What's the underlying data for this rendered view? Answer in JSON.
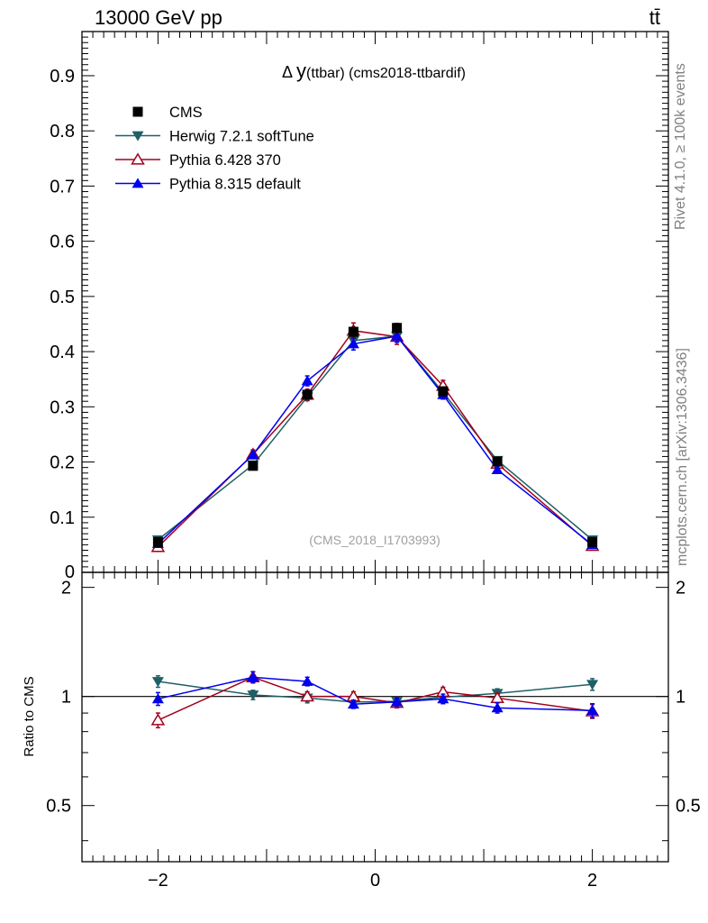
{
  "header": {
    "left": "13000 GeV pp",
    "right": "tt̄"
  },
  "side_labels": {
    "rivet": "Rivet 4.1.0, ≥ 100k events",
    "mcplots": "mcplots.cern.ch [arXiv:1306.3436]"
  },
  "chart_data": [
    {
      "type": "line",
      "panel": "main",
      "title": "Δ y(ttbar) (cms2018-ttbardif)",
      "title_parts": {
        "delta": "Δ ",
        "y": "y",
        "rest": "(ttbar) (cms2018-ttbardif)"
      },
      "watermark": "(CMS_2018_I1703993)",
      "xlim": [
        -2.7,
        2.7
      ],
      "ylim": [
        0,
        0.98
      ],
      "ytick_values": [
        0.1,
        0.2,
        0.3,
        0.4,
        0.5,
        0.6,
        0.7,
        0.8,
        0.9
      ],
      "ytick_labels": [
        "0.1",
        "0.2",
        "0.3",
        "0.4",
        "0.5",
        "0.6",
        "0.7",
        "0.8",
        "0.9"
      ],
      "ytick_bottom_label": "0",
      "x": [
        -2.0,
        -1.125,
        -0.625,
        -0.2,
        0.2,
        0.625,
        1.125,
        2.0
      ],
      "series": [
        {
          "name": "CMS",
          "color": "#000000",
          "marker": "square",
          "values": [
            0.055,
            0.193,
            0.322,
            0.436,
            0.443,
            0.328,
            0.201,
            0.055
          ],
          "errors": [
            0.005,
            0.006,
            0.008,
            0.008,
            0.008,
            0.008,
            0.006,
            0.005
          ]
        },
        {
          "name": "Herwig 7.2.1 softTune",
          "color": "#1f5f66",
          "marker": "triangle-down",
          "values": [
            0.059,
            0.195,
            0.318,
            0.42,
            0.428,
            0.326,
            0.203,
            0.059
          ],
          "errors": [
            0.003,
            0.005,
            0.007,
            0.008,
            0.008,
            0.007,
            0.005,
            0.003
          ]
        },
        {
          "name": "Pythia 6.428 370",
          "color": "#a3001c",
          "marker": "triangle-open",
          "values": [
            0.046,
            0.214,
            0.322,
            0.438,
            0.427,
            0.338,
            0.197,
            0.048
          ],
          "errors": [
            0.003,
            0.008,
            0.01,
            0.014,
            0.014,
            0.01,
            0.008,
            0.003
          ]
        },
        {
          "name": "Pythia 8.315 default",
          "color": "#0000ee",
          "marker": "triangle-up",
          "values": [
            0.052,
            0.213,
            0.347,
            0.414,
            0.428,
            0.322,
            0.186,
            0.05
          ],
          "errors": [
            0.002,
            0.006,
            0.009,
            0.011,
            0.011,
            0.008,
            0.006,
            0.002
          ]
        }
      ]
    },
    {
      "type": "line",
      "panel": "ratio",
      "ylabel": "Ratio to CMS",
      "xlim": [
        -2.7,
        2.7
      ],
      "ylim": [
        0.35,
        2.2
      ],
      "yscale": "log",
      "ytick_values": [
        0.5,
        1,
        2
      ],
      "ytick_labels": [
        "0.5",
        "1",
        "2"
      ],
      "xtick_values": [
        -2,
        0,
        2
      ],
      "xtick_labels": [
        "−2",
        "0",
        "2"
      ],
      "reference_line": 1,
      "x": [
        -2.0,
        -1.125,
        -0.625,
        -0.2,
        0.2,
        0.625,
        1.125,
        2.0
      ],
      "series": [
        {
          "name": "Herwig 7.2.1 softTune",
          "color": "#1f5f66",
          "marker": "triangle-down",
          "values": [
            1.1,
            1.01,
            0.99,
            0.965,
            0.97,
            0.995,
            1.02,
            1.08
          ],
          "errors": [
            0.04,
            0.03,
            0.03,
            0.025,
            0.025,
            0.03,
            0.03,
            0.04
          ]
        },
        {
          "name": "Pythia 6.428 370",
          "color": "#a3001c",
          "marker": "triangle-open",
          "values": [
            0.86,
            1.13,
            1.0,
            1.0,
            0.96,
            1.03,
            0.99,
            0.91
          ],
          "errors": [
            0.04,
            0.04,
            0.03,
            0.03,
            0.03,
            0.03,
            0.03,
            0.04
          ]
        },
        {
          "name": "Pythia 8.315 default",
          "color": "#0000ee",
          "marker": "triangle-up",
          "values": [
            0.985,
            1.13,
            1.1,
            0.952,
            0.966,
            0.985,
            0.93,
            0.915
          ],
          "errors": [
            0.04,
            0.04,
            0.03,
            0.025,
            0.025,
            0.03,
            0.03,
            0.04
          ]
        }
      ]
    }
  ]
}
